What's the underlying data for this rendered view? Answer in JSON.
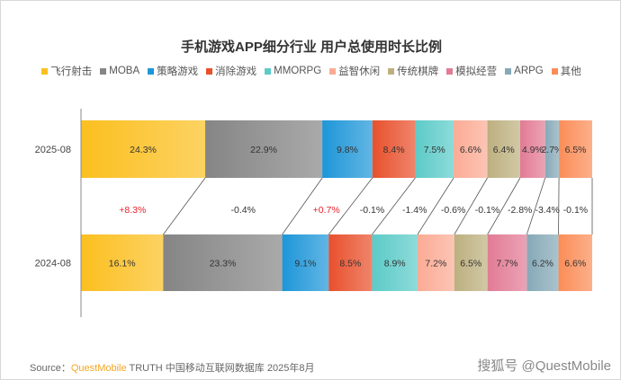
{
  "chart_data": {
    "type": "bar",
    "orientation": "horizontal-stacked-100",
    "title": "手机游戏APP细分行业 用户总使用时长比例",
    "legend_position": "top",
    "categories": [
      "2025-08",
      "2024-08"
    ],
    "series": [
      {
        "name": "飞行射击",
        "color": "#fbbf1f",
        "values": [
          24.3,
          16.1
        ],
        "change": "+8.3%"
      },
      {
        "name": "MOBA",
        "color": "#858585",
        "values": [
          22.9,
          23.3
        ],
        "change": "-0.4%"
      },
      {
        "name": "策略游戏",
        "color": "#1e96d8",
        "values": [
          9.8,
          9.1
        ],
        "change": "+0.7%"
      },
      {
        "name": "消除游戏",
        "color": "#e8502c",
        "values": [
          8.4,
          8.5
        ],
        "change": "-0.1%"
      },
      {
        "name": "MMORPG",
        "color": "#5ccbc8",
        "values": [
          7.5,
          8.9
        ],
        "change": "-1.4%"
      },
      {
        "name": "益智休闲",
        "color": "#fbab95",
        "values": [
          6.6,
          7.2
        ],
        "change": "-0.6%"
      },
      {
        "name": "传统棋牌",
        "color": "#bdb07f",
        "values": [
          6.4,
          6.5
        ],
        "change": "-0.1%"
      },
      {
        "name": "模拟经营",
        "color": "#e27b95",
        "values": [
          4.9,
          7.7
        ],
        "change": "-2.8%"
      },
      {
        "name": "ARPG",
        "color": "#86a9b7",
        "values": [
          2.7,
          6.2
        ],
        "change": "-3.4%"
      },
      {
        "name": "其他",
        "color": "#fb8d58",
        "values": [
          6.5,
          6.6
        ],
        "change": "-0.1%"
      }
    ],
    "value_labels": [
      [
        "24.3%",
        "22.9%",
        "9.8%",
        "8.4%",
        "7.5%",
        "6.6%",
        "6.4%",
        "4.9%",
        "2.7%",
        "6.5%"
      ],
      [
        "16.1%",
        "23.3%",
        "9.1%",
        "8.5%",
        "8.9%",
        "7.2%",
        "6.5%",
        "7.7%",
        "6.2%",
        "6.6%"
      ]
    ],
    "positive_change_color": "#e8202a"
  },
  "footer": {
    "source_label": "Source：",
    "source_brand": "QuestMobile",
    "source_text": " TRUTH 中国移动互联网数据库 2025年8月",
    "watermark": "搜狐号 @QuestMobile"
  }
}
